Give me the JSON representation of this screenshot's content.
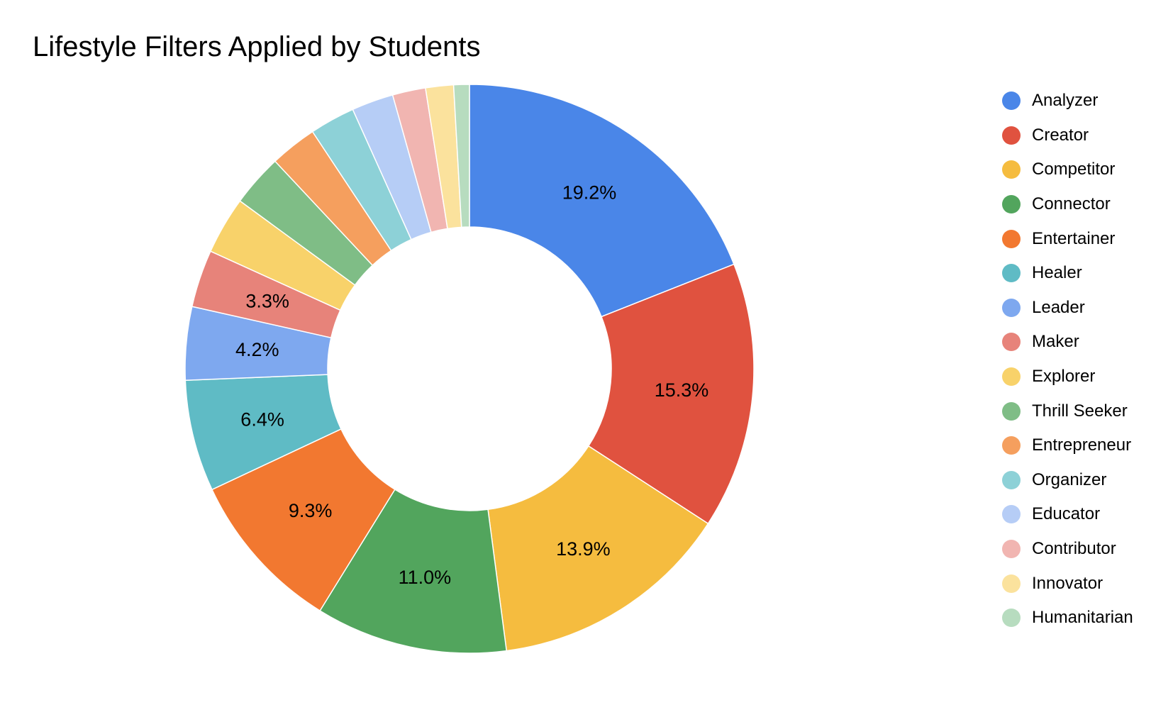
{
  "chart_data": {
    "type": "pie",
    "title": "Lifestyle Filters Applied by Students",
    "donut": true,
    "legend_position": "right",
    "categories": [
      "Analyzer",
      "Creator",
      "Competitor",
      "Connector",
      "Entertainer",
      "Healer",
      "Leader",
      "Maker",
      "Explorer",
      "Thrill Seeker",
      "Entrepreneur",
      "Organizer",
      "Educator",
      "Contributor",
      "Innovator",
      "Humanitarian"
    ],
    "values": [
      19.2,
      15.3,
      13.9,
      11.0,
      9.3,
      6.4,
      4.2,
      3.3,
      3.3,
      3.0,
      2.7,
      2.6,
      2.4,
      1.9,
      1.6,
      0.9
    ],
    "value_labels": [
      "19.2%",
      "15.3%",
      "13.9%",
      "11.0%",
      "9.3%",
      "6.4%",
      "4.2%",
      "3.3%",
      "",
      "",
      "",
      "",
      "",
      "",
      "",
      ""
    ],
    "colors": [
      "#4a86e8",
      "#e0523f",
      "#f5bc3f",
      "#52a55d",
      "#f27830",
      "#5fbbc5",
      "#7ea8ef",
      "#e7837a",
      "#f8d26a",
      "#7fbd86",
      "#f59f5e",
      "#8dd1d7",
      "#b6cdf6",
      "#f1b5b1",
      "#fbe29d",
      "#b7dcbf"
    ]
  }
}
